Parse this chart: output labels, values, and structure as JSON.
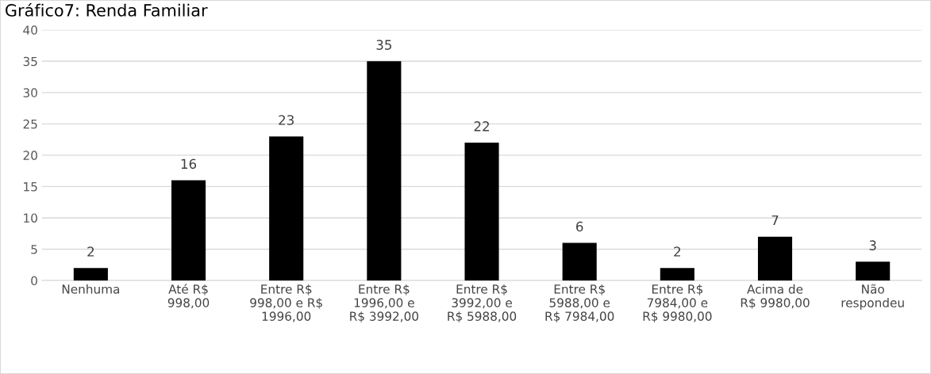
{
  "chart_data": {
    "type": "bar",
    "title": "Gráfico7: Renda Familiar",
    "categories": [
      "Nenhuma",
      "Até R$\n998,00",
      "Entre R$\n998,00 e R$\n1996,00",
      "Entre R$\n1996,00 e\nR$ 3992,00",
      "Entre R$\n3992,00 e\nR$ 5988,00",
      "Entre R$\n5988,00 e\nR$ 7984,00",
      "Entre R$\n7984,00 e\nR$ 9980,00",
      "Acima de\nR$ 9980,00",
      "Não\nrespondeu"
    ],
    "values": [
      2,
      16,
      23,
      35,
      22,
      6,
      2,
      7,
      3
    ],
    "color": "#000000",
    "ylim": [
      0,
      40
    ],
    "yticks": [
      0,
      5,
      10,
      15,
      20,
      25,
      30,
      35,
      40
    ],
    "grid": "y",
    "data_labels": true,
    "legend": false
  }
}
